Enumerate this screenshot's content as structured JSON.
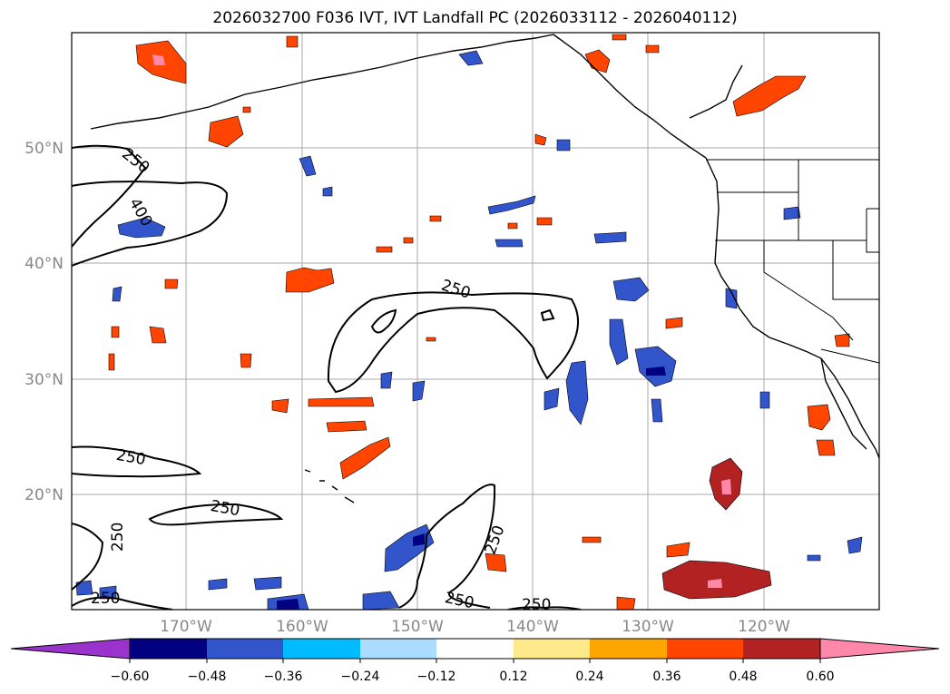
{
  "title": "2026032700 F036 IVT, IVT Landfall PC (2026033112 - 2026040112)",
  "lat_labels": [
    "50°N",
    "40°N",
    "30°N",
    "20°N"
  ],
  "lon_labels": [
    "170°W",
    "160°W",
    "150°W",
    "140°W",
    "130°W",
    "120°W"
  ],
  "contour_labels": [
    "250",
    "400",
    "250",
    "250",
    "250",
    "250",
    "250",
    "250",
    "250",
    "250"
  ],
  "colorbar": {
    "tick_labels": [
      "−0.60",
      "−0.48",
      "−0.36",
      "−0.24",
      "−0.12",
      "0.12",
      "0.24",
      "0.36",
      "0.48",
      "0.60"
    ],
    "colors": [
      "#9933cc",
      "#000080",
      "#3355cc",
      "#00bbff",
      "#aaddff",
      "#ffffff",
      "#ffe98a",
      "#ffa500",
      "#ff4500",
      "#b22222",
      "#ff88aa"
    ]
  },
  "colors": {
    "contour": "#000000",
    "grid": "#aaaaaa",
    "coast": "#000000",
    "axis_label": "#888888"
  }
}
